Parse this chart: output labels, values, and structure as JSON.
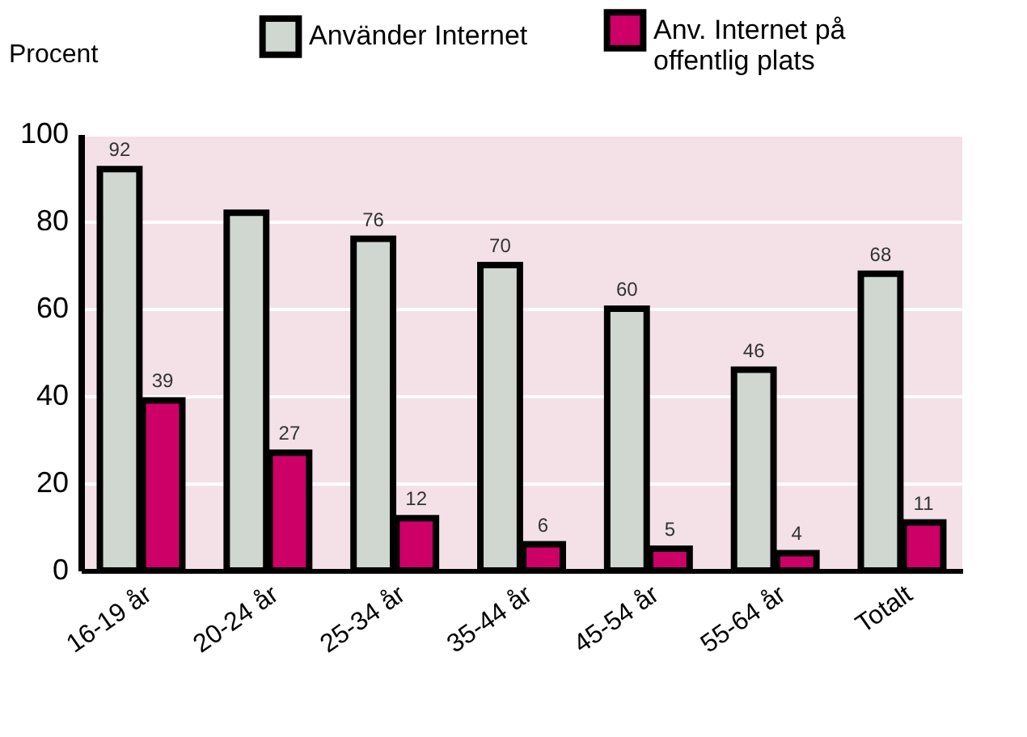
{
  "chart_data": {
    "type": "bar",
    "ylabel": "Procent",
    "categories": [
      "16-19 år",
      "20-24 år",
      "25-34 år",
      "35-44 år",
      "45-54 år",
      "55-64 år",
      "Totalt"
    ],
    "series": [
      {
        "name": "Använder Internet",
        "color": "#d0d6d0",
        "values": [
          92,
          82,
          76,
          70,
          60,
          46,
          68
        ],
        "value_labels": [
          "92",
          null,
          "76",
          "70",
          "60",
          "46",
          "68"
        ]
      },
      {
        "name": "Anv. Internet på offentlig plats",
        "color": "#cc0066",
        "values": [
          39,
          27,
          12,
          6,
          5,
          4,
          11
        ],
        "value_labels": [
          "39",
          "27",
          "12",
          "6",
          "5",
          "4",
          "11"
        ]
      }
    ],
    "ylim": [
      0,
      100
    ],
    "yticks": [
      0,
      20,
      40,
      60,
      80,
      100
    ],
    "grid": "y",
    "legend": "top"
  }
}
